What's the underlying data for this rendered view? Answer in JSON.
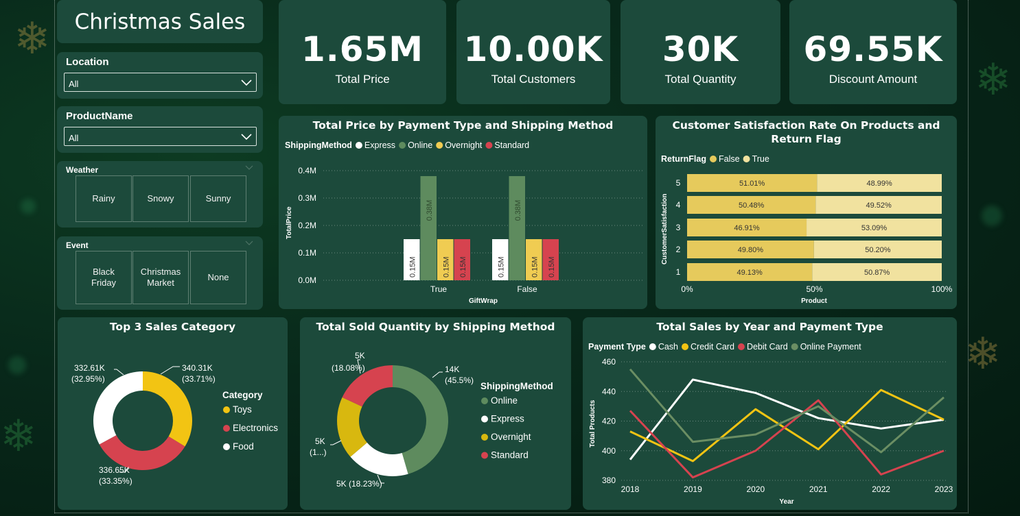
{
  "dashboard": {
    "title": "Christmas Sales"
  },
  "filters": {
    "location": {
      "label": "Location",
      "value": "All"
    },
    "product": {
      "label": "ProductName",
      "value": "All"
    },
    "weather": {
      "label": "Weather",
      "options": [
        "Rainy",
        "Snowy",
        "Sunny"
      ]
    },
    "event": {
      "label": "Event",
      "options": [
        "Black\nFriday",
        "Christmas\nMarket",
        "None"
      ]
    }
  },
  "kpis": [
    {
      "value": "1.65M",
      "label": "Total Price"
    },
    {
      "value": "10.00K",
      "label": "Total Customers"
    },
    {
      "value": "30K",
      "label": "Total Quantity"
    },
    {
      "value": "69.55K",
      "label": "Discount Amount"
    }
  ],
  "colors": {
    "express": "#ffffff",
    "online": "#5e8b5e",
    "overnight": "#f0cc52",
    "standard": "#d6434f",
    "false_flag": "#e6ca5c",
    "true_flag": "#f1e29f",
    "toys": "#f2c413",
    "electronics": "#d6434f",
    "food": "#ffffff",
    "cash": "#ffffff",
    "credit_card": "#f2c413",
    "debit_card": "#d6434f",
    "online_payment": "#6b8e63"
  },
  "chart_data": [
    {
      "type": "bar",
      "title": "Total Price by Payment Type and Shipping Method",
      "legend_title": "ShippingMethod",
      "xlabel": "GiftWrap",
      "ylabel": "TotalPrice",
      "categories": [
        "True",
        "False"
      ],
      "yticks": [
        "0.0M",
        "0.1M",
        "0.2M",
        "0.3M",
        "0.4M"
      ],
      "ylim": [
        0,
        0.4
      ],
      "series": [
        {
          "name": "Express",
          "values": [
            0.15,
            0.15
          ],
          "labels": [
            "0.15M",
            "0.15M"
          ]
        },
        {
          "name": "Online",
          "values": [
            0.38,
            0.38
          ],
          "labels": [
            "0.38M",
            "0.38M"
          ]
        },
        {
          "name": "Overnight",
          "values": [
            0.15,
            0.15
          ],
          "labels": [
            "0.15M",
            "0.15M"
          ]
        },
        {
          "name": "Standard",
          "values": [
            0.15,
            0.15
          ],
          "labels": [
            "0.15M",
            "0.15M"
          ]
        }
      ],
      "grid": true,
      "legend": "top-left"
    },
    {
      "type": "bar",
      "title": "Customer Satisfaction Rate On Products and Return Flag",
      "legend_title": "ReturnFlag",
      "xlabel": "Product",
      "ylabel": "CustomerSatisfaction",
      "categories": [
        "5",
        "4",
        "3",
        "2",
        "1"
      ],
      "xticks": [
        "0%",
        "50%",
        "100%"
      ],
      "series": [
        {
          "name": "False",
          "values": [
            51.01,
            50.48,
            46.91,
            49.8,
            49.13
          ],
          "labels": [
            "51.01%",
            "50.48%",
            "46.91%",
            "49.80%",
            "49.13%"
          ]
        },
        {
          "name": "True",
          "values": [
            48.99,
            49.52,
            53.09,
            50.2,
            50.87
          ],
          "labels": [
            "48.99%",
            "49.52%",
            "53.09%",
            "50.20%",
            "50.87%"
          ]
        }
      ],
      "legend": "top-left"
    },
    {
      "type": "pie",
      "title": "Top 3 Sales Category",
      "legend_title": "Category",
      "slices": [
        {
          "name": "Toys",
          "value": 340.31,
          "label": "340.31K",
          "pct": "(33.71%)"
        },
        {
          "name": "Electronics",
          "value": 336.65,
          "label": "336.65K",
          "pct": "(33.35%)"
        },
        {
          "name": "Food",
          "value": 332.61,
          "label": "332.61K",
          "pct": "(32.95%)"
        }
      ],
      "legend": "right"
    },
    {
      "type": "pie",
      "title": "Total Sold Quantity by Shipping Method",
      "legend_title": "ShippingMethod",
      "slices": [
        {
          "name": "Online",
          "value": 45.5,
          "label": "14K",
          "pct": "(45.5%)"
        },
        {
          "name": "Express",
          "value": 18.23,
          "label": "5K (18.23%)",
          "pct": ""
        },
        {
          "name": "Overnight",
          "value": 18.19,
          "label": "5K",
          "pct": "(1...)"
        },
        {
          "name": "Standard",
          "value": 18.08,
          "label": "5K",
          "pct": "(18.08%)"
        }
      ],
      "legend": "right"
    },
    {
      "type": "line",
      "title": "Total Sales by Year and Payment Type",
      "legend_title": "Payment Type",
      "xlabel": "Year",
      "ylabel": "Total Products",
      "x": [
        2018,
        2019,
        2020,
        2021,
        2022,
        2023
      ],
      "yticks": [
        380,
        400,
        420,
        440,
        460
      ],
      "ylim": [
        380,
        460
      ],
      "series": [
        {
          "name": "Cash",
          "values": [
            394,
            448,
            439,
            422,
            415,
            421
          ]
        },
        {
          "name": "Credit Card",
          "values": [
            413,
            393,
            428,
            401,
            441,
            421
          ]
        },
        {
          "name": "Debit Card",
          "values": [
            427,
            382,
            400,
            434,
            384,
            400
          ]
        },
        {
          "name": "Online Payment",
          "values": [
            455,
            406,
            411,
            430,
            399,
            436
          ]
        }
      ],
      "grid": true,
      "legend": "top-left"
    }
  ]
}
